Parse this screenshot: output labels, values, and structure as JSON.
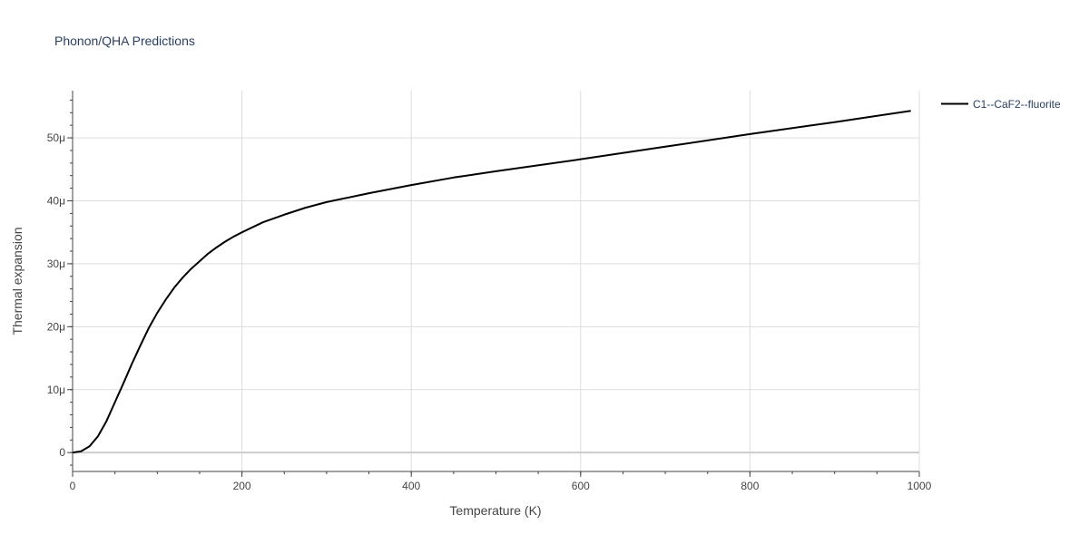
{
  "chart_data": {
    "type": "line",
    "title": "Phonon/QHA Predictions",
    "xlabel": "Temperature (K)",
    "ylabel": "Thermal expansion",
    "xlim": [
      0,
      1000
    ],
    "ylim": [
      -3,
      57.5
    ],
    "x_ticks": [
      0,
      200,
      400,
      600,
      800,
      1000
    ],
    "x_tick_labels": [
      "0",
      "200",
      "400",
      "600",
      "800",
      "1000"
    ],
    "y_ticks": [
      0,
      10,
      20,
      30,
      40,
      50
    ],
    "y_tick_labels": [
      "0",
      "10μ",
      "20μ",
      "30μ",
      "40μ",
      "50μ"
    ],
    "grid": true,
    "legend_position": "top-right",
    "series": [
      {
        "name": "C1--CaF2--fluorite",
        "color": "#000000",
        "x": [
          0,
          10,
          20,
          30,
          40,
          50,
          60,
          70,
          80,
          90,
          100,
          110,
          120,
          130,
          140,
          150,
          160,
          170,
          180,
          190,
          200,
          225,
          250,
          275,
          300,
          350,
          400,
          450,
          500,
          600,
          700,
          800,
          900,
          990
        ],
        "y": [
          0,
          0.2,
          1.0,
          2.6,
          5.0,
          8.0,
          11.0,
          14.1,
          17.0,
          19.8,
          22.2,
          24.3,
          26.2,
          27.8,
          29.2,
          30.4,
          31.6,
          32.6,
          33.5,
          34.3,
          35.0,
          36.6,
          37.8,
          38.9,
          39.8,
          41.2,
          42.5,
          43.7,
          44.7,
          46.6,
          48.6,
          50.6,
          52.5,
          54.3
        ]
      }
    ]
  }
}
